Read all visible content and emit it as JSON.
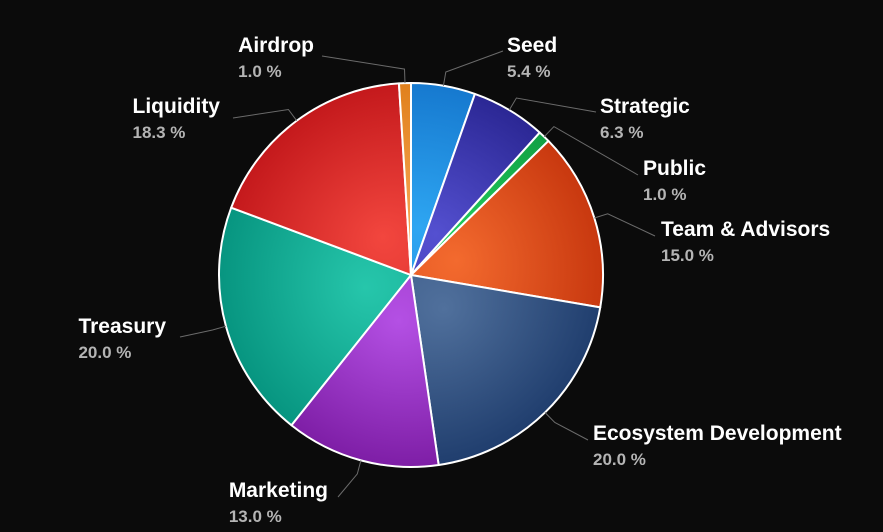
{
  "chart_data": {
    "type": "pie",
    "title": "",
    "slices": [
      {
        "name": "Seed",
        "value": 5.4,
        "label": "5.4 %",
        "color": "#2ea6f2",
        "color_dark": "#1679cf"
      },
      {
        "name": "Strategic",
        "value": 6.3,
        "label": "6.3 %",
        "color": "#5450d0",
        "color_dark": "#2b2794"
      },
      {
        "name": "Public",
        "value": 1.0,
        "label": "1.0 %",
        "color": "#22cf5e",
        "color_dark": "#11a044"
      },
      {
        "name": "Team & Advisors",
        "value": 15.0,
        "label": "15.0 %",
        "color": "#f36a2e",
        "color_dark": "#c8380f"
      },
      {
        "name": "Ecosystem Development",
        "value": 20.0,
        "label": "20.0 %",
        "color": "#50709c",
        "color_dark": "#203e6e"
      },
      {
        "name": "Marketing",
        "value": 13.0,
        "label": "13.0 %",
        "color": "#b450e4",
        "color_dark": "#7e1ea6"
      },
      {
        "name": "Treasury",
        "value": 20.0,
        "label": "20.0 %",
        "color": "#26c6ab",
        "color_dark": "#079580"
      },
      {
        "name": "Liquidity",
        "value": 18.3,
        "label": "18.3 %",
        "color": "#f2463e",
        "color_dark": "#c4191c"
      },
      {
        "name": "Airdrop",
        "value": 1.0,
        "label": "1.0 %",
        "color": "#f6a351",
        "color_dark": "#e0801c"
      }
    ],
    "background": "#0b0b0b",
    "label_color": "#ffffff",
    "percent_color": "#b4b4b4",
    "legend": "none"
  }
}
